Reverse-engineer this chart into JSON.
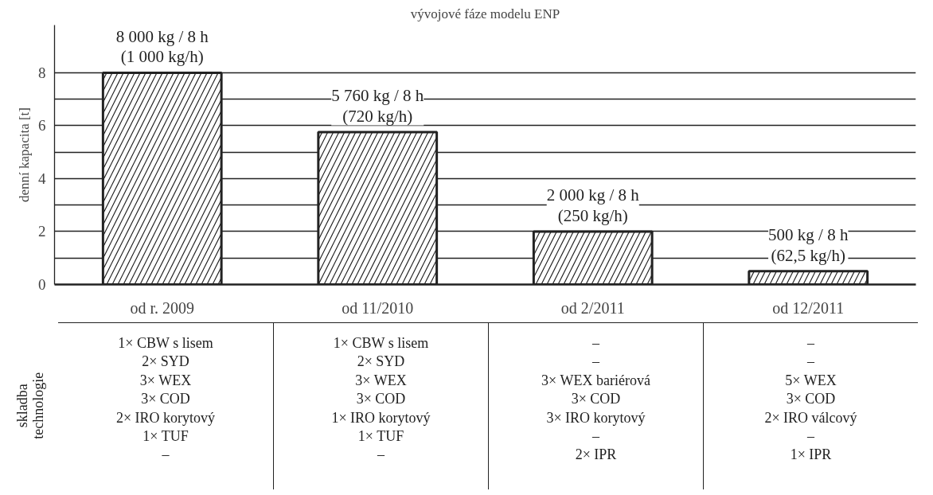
{
  "chart_data": {
    "type": "bar",
    "title": "vývojové fáze modelu ENP",
    "ylabel": "denní kapacita [t]",
    "categories": [
      "od r. 2009",
      "od 11/2010",
      "od 2/2011",
      "od 12/2011"
    ],
    "values": [
      8,
      5.76,
      2,
      0.5
    ],
    "color": "#ffffff",
    "ylim": [
      0,
      9.8
    ],
    "yticks": [
      0,
      {
        "value": 1,
        "label": null
      },
      2,
      {
        "value": 3,
        "label": null
      },
      4,
      {
        "value": 5,
        "label": null
      },
      6,
      {
        "value": 7,
        "label": null
      },
      8
    ],
    "grid": "y",
    "annotations": [
      {
        "text": "8 000 kg / 8 h\n(1 000 kg/h)",
        "x": "od r. 2009",
        "y": 8
      },
      {
        "text": "5 760 kg / 8 h\n(720 kg/h)",
        "x": "od 11/2010",
        "y": 5.76
      },
      {
        "text": "2 000 kg / 8 h\n(250 kg/h)",
        "x": "od 2/2011",
        "y": 2
      },
      {
        "text": "500 kg / 8 h\n(62,5 kg/h)",
        "x": "od 12/2011",
        "y": 0.5
      },
      "skladba\ntechnologie",
      "1× CBW s lisem\n2× SYD\n3× WEX\n3× COD\n2× IRO korytový\n1× TUF\n–",
      "1× CBW s lisem\n2× SYD\n3× WEX\n3× COD\n1× IRO korytový\n1× TUF\n–",
      "–\n–\n3× WEX bariérová\n3× COD\n3× IRO korytový\n–\n2× IPR",
      "–\n–\n5× WEX\n3× COD\n2× IRO válcový\n–\n1× IPR"
    ]
  }
}
